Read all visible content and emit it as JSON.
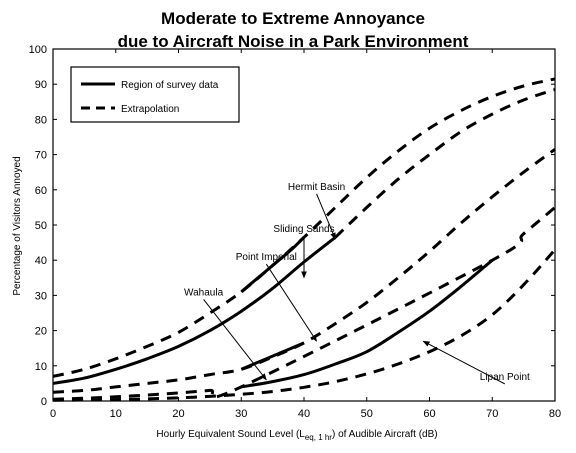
{
  "chart_data": {
    "type": "line",
    "title_line1": "Moderate to Extreme Annoyance",
    "title_line2": "due to Aircraft Noise in a Park Environment",
    "xlabel_parts": [
      "Hourly Equivalent Sound Level (L",
      "eq, 1 hr",
      ") of Audible Aircraft (dB)"
    ],
    "ylabel": "Percentage of Visitors Annoyed",
    "xlim": [
      0,
      80
    ],
    "ylim": [
      0,
      100
    ],
    "xticks": [
      0,
      10,
      20,
      30,
      40,
      50,
      60,
      70,
      80
    ],
    "yticks": [
      0,
      10,
      20,
      30,
      40,
      50,
      60,
      70,
      80,
      90,
      100
    ],
    "legend": {
      "position": "top-left",
      "entries": [
        {
          "label": "Region of survey data",
          "style": "solid"
        },
        {
          "label": "Extrapolation",
          "style": "dashed"
        }
      ]
    },
    "series": [
      {
        "name": "Hermit Basin",
        "solid": {
          "x": [
            30,
            32,
            34,
            36,
            38,
            40
          ],
          "y": [
            31,
            34,
            37,
            40,
            43,
            46.5
          ]
        },
        "dashed": {
          "x": [
            0,
            5,
            10,
            15,
            20,
            25,
            30,
            35,
            40,
            45,
            50,
            55,
            60,
            65,
            70,
            75,
            80
          ],
          "y": [
            7,
            9,
            12,
            15.5,
            19.5,
            25,
            31,
            38.5,
            46.5,
            55,
            63.5,
            71,
            77.5,
            82.5,
            86.5,
            89.5,
            91.5
          ]
        }
      },
      {
        "name": "Sliding Sands",
        "solid": {
          "x": [
            0,
            5,
            10,
            15,
            20,
            25,
            30,
            35,
            40,
            45
          ],
          "y": [
            5,
            6.5,
            9,
            12,
            15.5,
            20,
            25.5,
            32,
            39.5,
            46.5
          ]
        },
        "dashed": {
          "x": [
            45,
            50,
            55,
            60,
            65,
            70,
            75,
            80
          ],
          "y": [
            46.5,
            55,
            63,
            70,
            76.5,
            81.5,
            85.5,
            88.5
          ]
        }
      },
      {
        "name": "Point Imperial",
        "solid": {
          "x": [
            30,
            32,
            34,
            36,
            38,
            40
          ],
          "y": [
            9,
            10.5,
            12,
            13.5,
            15,
            16.5
          ]
        },
        "dashed": {
          "x": [
            0,
            5,
            10,
            15,
            20,
            25,
            30,
            35,
            40,
            45,
            50,
            55,
            60,
            65,
            70,
            75,
            80
          ],
          "y": [
            2.5,
            3,
            4,
            5,
            6,
            7.5,
            9,
            12.5,
            16.5,
            22,
            28,
            35,
            42.5,
            50.5,
            58,
            65,
            71.5
          ]
        }
      },
      {
        "name": "Wahaula",
        "solid": {
          "x": [
            30,
            35,
            40,
            45,
            50,
            55,
            60,
            65,
            70
          ],
          "y": [
            4,
            5.5,
            7.5,
            10.5,
            14,
            19.5,
            25.5,
            32.5,
            40
          ]
        },
        "dashed": {
          "x": [
            0,
            5,
            10,
            15,
            20,
            25,
            30,
            70,
            75,
            80
          ],
          "y": [
            0.5,
            0.8,
            1.2,
            1.7,
            2.3,
            3,
            4,
            40,
            47.5,
            55
          ]
        }
      },
      {
        "name": "Lipan Point",
        "solid": {
          "x": [],
          "y": []
        },
        "dashed": {
          "x": [
            0,
            5,
            10,
            15,
            20,
            25,
            30,
            35,
            40,
            45,
            50,
            55,
            60,
            65,
            70,
            75,
            80
          ],
          "y": [
            0.2,
            0.3,
            0.4,
            0.6,
            0.9,
            1.3,
            1.9,
            2.7,
            3.9,
            5.5,
            7.7,
            10.5,
            14,
            18.5,
            24.5,
            33,
            43
          ]
        }
      }
    ],
    "annotations": [
      {
        "text": "Hermit Basin",
        "target_series": "Hermit Basin",
        "at": [
          42,
          60
        ],
        "arrow_to": [
          45,
          46
        ]
      },
      {
        "text": "Sliding Sands",
        "target_series": "Sliding Sands",
        "at": [
          40,
          48
        ],
        "arrow_to": [
          40,
          35
        ]
      },
      {
        "text": "Point Imperial",
        "target_series": "Point Imperial",
        "at": [
          34,
          40
        ],
        "arrow_to": [
          42,
          17
        ]
      },
      {
        "text": "Wahaula",
        "target_series": "Wahaula",
        "at": [
          24,
          30
        ],
        "arrow_to": [
          34,
          6
        ]
      },
      {
        "text": "Lipan Point",
        "target_series": "Lipan Point",
        "at": [
          72,
          6
        ],
        "arrow_to": [
          59,
          17
        ]
      }
    ]
  }
}
